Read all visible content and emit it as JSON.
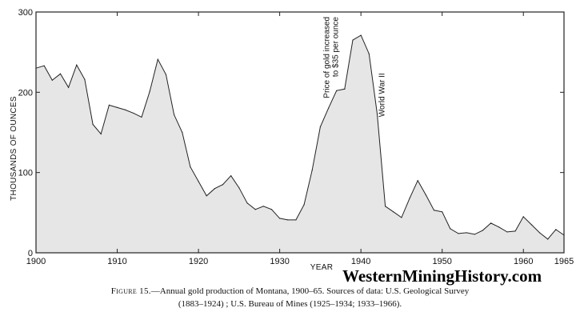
{
  "chart_data": {
    "type": "area",
    "title": "",
    "xlabel": "YEAR",
    "ylabel": "THOUSANDS OF OUNCES",
    "xlim": [
      1900,
      1965
    ],
    "ylim": [
      0,
      300
    ],
    "x_ticks": [
      "1900",
      "1910",
      "1920",
      "1930",
      "1940",
      "1950",
      "1960",
      "1965"
    ],
    "y_ticks": [
      "0",
      "100",
      "200",
      "300"
    ],
    "fill_color": "#e6e6e6",
    "line_color": "#222222",
    "grid": false,
    "series": [
      {
        "x": [
          1900,
          1901,
          1902,
          1903,
          1904,
          1905,
          1906,
          1907,
          1908,
          1909,
          1910,
          1911,
          1912,
          1913,
          1914,
          1915,
          1916,
          1917,
          1918,
          1919,
          1920,
          1921,
          1922,
          1923,
          1924,
          1925,
          1926,
          1927,
          1928,
          1929,
          1930,
          1931,
          1932,
          1933,
          1934,
          1935,
          1936,
          1937,
          1938,
          1939,
          1940,
          1941,
          1942,
          1943,
          1944,
          1945,
          1946,
          1947,
          1948,
          1949,
          1950,
          1951,
          1952,
          1953,
          1954,
          1955,
          1956,
          1957,
          1958,
          1959,
          1960,
          1961,
          1962,
          1963,
          1964,
          1965
        ],
        "values": [
          230,
          233,
          215,
          223,
          206,
          234,
          216,
          160,
          148,
          184,
          181,
          178,
          174,
          169,
          201,
          241,
          222,
          172,
          150,
          107,
          89,
          71,
          80,
          85,
          96,
          81,
          62,
          54,
          58,
          54,
          43,
          41,
          41,
          60,
          103,
          157,
          180,
          202,
          204,
          265,
          271,
          248,
          173,
          58,
          51,
          44,
          68,
          90,
          72,
          53,
          51,
          30,
          24,
          25,
          23,
          28,
          37,
          32,
          26,
          27,
          45,
          35,
          25,
          17,
          29,
          22
        ]
      }
    ],
    "annotations": [
      {
        "text": "Price of gold increased",
        "x": 1935.8,
        "y": 300
      },
      {
        "text": "to $35 per ounce",
        "x": 1936.9,
        "y": 300
      },
      {
        "text": "World War II",
        "x": 1942.6,
        "y": 224
      }
    ]
  },
  "caption": {
    "figure_label": "Figure 15.",
    "line1": "—Annual gold production of Montana, 1900–65. Sources of data: U.S. Geological Survey",
    "line2": "(1883–1924) ; U.S. Bureau of Mines (1925–1934; 1933–1966)."
  },
  "watermark": "WesternMiningHistory.com"
}
